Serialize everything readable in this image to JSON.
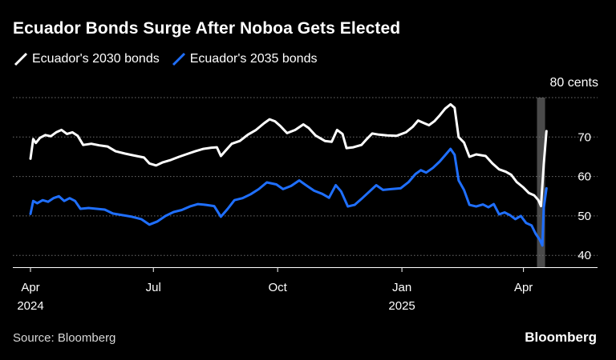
{
  "chart_data": {
    "type": "line",
    "title": "Ecuador Bonds Surge After Noboa Gets Elected",
    "unit_label": "80 cents",
    "ylim": [
      37,
      80
    ],
    "y_ticks": [
      {
        "value": 70,
        "label": "70"
      },
      {
        "value": 60,
        "label": "60"
      },
      {
        "value": 50,
        "label": "50"
      },
      {
        "value": 40,
        "label": "40"
      }
    ],
    "x_domain": [
      "2024-04-01",
      "2025-04-22"
    ],
    "x_ticks": [
      {
        "date": "2024-04-01",
        "label": "Apr",
        "sublabel": "2024"
      },
      {
        "date": "2024-07-01",
        "label": "Jul",
        "sublabel": ""
      },
      {
        "date": "2024-10-01",
        "label": "Oct",
        "sublabel": ""
      },
      {
        "date": "2025-01-01",
        "label": "Jan",
        "sublabel": "2025"
      },
      {
        "date": "2025-04-01",
        "label": "Apr",
        "sublabel": ""
      }
    ],
    "highlight_band": {
      "start": "2025-04-11",
      "end": "2025-04-17"
    },
    "grid": true,
    "legend_position": "top-left",
    "series": [
      {
        "name": "Ecuador's 2030 bonds",
        "color": "#ffffff",
        "points": [
          [
            "2024-04-01",
            64.5
          ],
          [
            "2024-04-03",
            69.5
          ],
          [
            "2024-04-05",
            68.5
          ],
          [
            "2024-04-08",
            69.8
          ],
          [
            "2024-04-12",
            70.5
          ],
          [
            "2024-04-16",
            70.2
          ],
          [
            "2024-04-20",
            71.2
          ],
          [
            "2024-04-24",
            71.8
          ],
          [
            "2024-04-28",
            70.8
          ],
          [
            "2024-05-02",
            71.2
          ],
          [
            "2024-05-06",
            70.3
          ],
          [
            "2024-05-10",
            68.0
          ],
          [
            "2024-05-16",
            68.3
          ],
          [
            "2024-05-22",
            67.9
          ],
          [
            "2024-05-28",
            67.6
          ],
          [
            "2024-06-03",
            66.4
          ],
          [
            "2024-06-10",
            65.8
          ],
          [
            "2024-06-17",
            65.3
          ],
          [
            "2024-06-24",
            64.8
          ],
          [
            "2024-06-28",
            63.3
          ],
          [
            "2024-07-03",
            62.8
          ],
          [
            "2024-07-08",
            63.6
          ],
          [
            "2024-07-14",
            64.2
          ],
          [
            "2024-07-20",
            65.0
          ],
          [
            "2024-07-26",
            65.7
          ],
          [
            "2024-08-01",
            66.4
          ],
          [
            "2024-08-07",
            67.0
          ],
          [
            "2024-08-13",
            67.3
          ],
          [
            "2024-08-17",
            67.4
          ],
          [
            "2024-08-20",
            65.2
          ],
          [
            "2024-08-23",
            66.4
          ],
          [
            "2024-08-28",
            68.3
          ],
          [
            "2024-09-03",
            69.0
          ],
          [
            "2024-09-09",
            70.6
          ],
          [
            "2024-09-15",
            71.8
          ],
          [
            "2024-09-21",
            73.5
          ],
          [
            "2024-09-25",
            74.5
          ],
          [
            "2024-09-29",
            74.0
          ],
          [
            "2024-10-03",
            72.8
          ],
          [
            "2024-10-08",
            71.0
          ],
          [
            "2024-10-14",
            71.8
          ],
          [
            "2024-10-20",
            73.2
          ],
          [
            "2024-10-24",
            72.3
          ],
          [
            "2024-10-29",
            70.4
          ],
          [
            "2024-11-05",
            69.0
          ],
          [
            "2024-11-10",
            68.8
          ],
          [
            "2024-11-14",
            71.8
          ],
          [
            "2024-11-18",
            70.8
          ],
          [
            "2024-11-21",
            67.2
          ],
          [
            "2024-11-26",
            67.4
          ],
          [
            "2024-12-02",
            68.0
          ],
          [
            "2024-12-06",
            69.5
          ],
          [
            "2024-12-10",
            70.9
          ],
          [
            "2024-12-15",
            70.6
          ],
          [
            "2024-12-21",
            70.4
          ],
          [
            "2024-12-28",
            70.3
          ],
          [
            "2025-01-04",
            71.2
          ],
          [
            "2025-01-09",
            72.6
          ],
          [
            "2025-01-13",
            74.2
          ],
          [
            "2025-01-17",
            73.6
          ],
          [
            "2025-01-21",
            73.0
          ],
          [
            "2025-01-25",
            74.0
          ],
          [
            "2025-01-29",
            75.5
          ],
          [
            "2025-02-02",
            77.2
          ],
          [
            "2025-02-06",
            78.3
          ],
          [
            "2025-02-09",
            77.4
          ],
          [
            "2025-02-12",
            70.0
          ],
          [
            "2025-02-16",
            68.6
          ],
          [
            "2025-02-20",
            65.0
          ],
          [
            "2025-02-25",
            65.6
          ],
          [
            "2025-03-04",
            65.2
          ],
          [
            "2025-03-09",
            63.3
          ],
          [
            "2025-03-14",
            61.8
          ],
          [
            "2025-03-19",
            61.2
          ],
          [
            "2025-03-23",
            60.4
          ],
          [
            "2025-03-27",
            58.6
          ],
          [
            "2025-04-01",
            57.2
          ],
          [
            "2025-04-05",
            55.8
          ],
          [
            "2025-04-09",
            55.2
          ],
          [
            "2025-04-12",
            54.0
          ],
          [
            "2025-04-14",
            52.5
          ],
          [
            "2025-04-16",
            63.0
          ],
          [
            "2025-04-18",
            71.5
          ]
        ]
      },
      {
        "name": "Ecuador's 2035 bonds",
        "color": "#1f6fff",
        "points": [
          [
            "2024-04-01",
            50.5
          ],
          [
            "2024-04-03",
            53.8
          ],
          [
            "2024-04-06",
            53.2
          ],
          [
            "2024-04-10",
            54.0
          ],
          [
            "2024-04-14",
            53.6
          ],
          [
            "2024-04-18",
            54.5
          ],
          [
            "2024-04-22",
            55.0
          ],
          [
            "2024-04-26",
            53.8
          ],
          [
            "2024-04-30",
            54.5
          ],
          [
            "2024-05-04",
            53.8
          ],
          [
            "2024-05-08",
            51.8
          ],
          [
            "2024-05-14",
            52.0
          ],
          [
            "2024-05-20",
            51.8
          ],
          [
            "2024-05-26",
            51.6
          ],
          [
            "2024-06-01",
            50.6
          ],
          [
            "2024-06-08",
            50.2
          ],
          [
            "2024-06-15",
            49.8
          ],
          [
            "2024-06-22",
            49.2
          ],
          [
            "2024-06-28",
            47.8
          ],
          [
            "2024-07-04",
            48.6
          ],
          [
            "2024-07-10",
            50.0
          ],
          [
            "2024-07-16",
            51.0
          ],
          [
            "2024-07-22",
            51.5
          ],
          [
            "2024-07-28",
            52.4
          ],
          [
            "2024-08-03",
            53.0
          ],
          [
            "2024-08-09",
            52.8
          ],
          [
            "2024-08-15",
            52.5
          ],
          [
            "2024-08-20",
            49.8
          ],
          [
            "2024-08-25",
            51.8
          ],
          [
            "2024-08-30",
            54.0
          ],
          [
            "2024-09-05",
            54.5
          ],
          [
            "2024-09-11",
            55.5
          ],
          [
            "2024-09-17",
            56.8
          ],
          [
            "2024-09-23",
            58.5
          ],
          [
            "2024-09-30",
            58.0
          ],
          [
            "2024-10-05",
            56.8
          ],
          [
            "2024-10-11",
            57.6
          ],
          [
            "2024-10-17",
            59.0
          ],
          [
            "2024-10-22",
            57.8
          ],
          [
            "2024-10-28",
            56.4
          ],
          [
            "2024-11-03",
            55.6
          ],
          [
            "2024-11-08",
            54.6
          ],
          [
            "2024-11-13",
            57.8
          ],
          [
            "2024-11-17",
            56.2
          ],
          [
            "2024-11-22",
            52.4
          ],
          [
            "2024-11-27",
            52.8
          ],
          [
            "2024-12-03",
            54.6
          ],
          [
            "2024-12-08",
            56.2
          ],
          [
            "2024-12-13",
            57.8
          ],
          [
            "2024-12-18",
            56.6
          ],
          [
            "2024-12-24",
            56.8
          ],
          [
            "2024-12-31",
            57.0
          ],
          [
            "2025-01-06",
            58.6
          ],
          [
            "2025-01-11",
            60.6
          ],
          [
            "2025-01-15",
            61.6
          ],
          [
            "2025-01-19",
            61.0
          ],
          [
            "2025-01-24",
            62.2
          ],
          [
            "2025-01-29",
            63.8
          ],
          [
            "2025-02-02",
            65.4
          ],
          [
            "2025-02-06",
            67.0
          ],
          [
            "2025-02-09",
            65.5
          ],
          [
            "2025-02-12",
            59.0
          ],
          [
            "2025-02-16",
            56.6
          ],
          [
            "2025-02-20",
            52.8
          ],
          [
            "2025-02-25",
            52.4
          ],
          [
            "2025-03-02",
            52.9
          ],
          [
            "2025-03-06",
            52.2
          ],
          [
            "2025-03-10",
            53.0
          ],
          [
            "2025-03-14",
            50.4
          ],
          [
            "2025-03-18",
            50.9
          ],
          [
            "2025-03-22",
            50.2
          ],
          [
            "2025-03-26",
            49.2
          ],
          [
            "2025-03-30",
            50.0
          ],
          [
            "2025-04-03",
            48.2
          ],
          [
            "2025-04-07",
            47.6
          ],
          [
            "2025-04-10",
            45.5
          ],
          [
            "2025-04-13",
            44.0
          ],
          [
            "2025-04-15",
            42.5
          ],
          [
            "2025-04-16",
            52.0
          ],
          [
            "2025-04-18",
            57.0
          ]
        ]
      }
    ]
  },
  "footer": {
    "source": "Source: Bloomberg",
    "brand": "Bloomberg"
  }
}
